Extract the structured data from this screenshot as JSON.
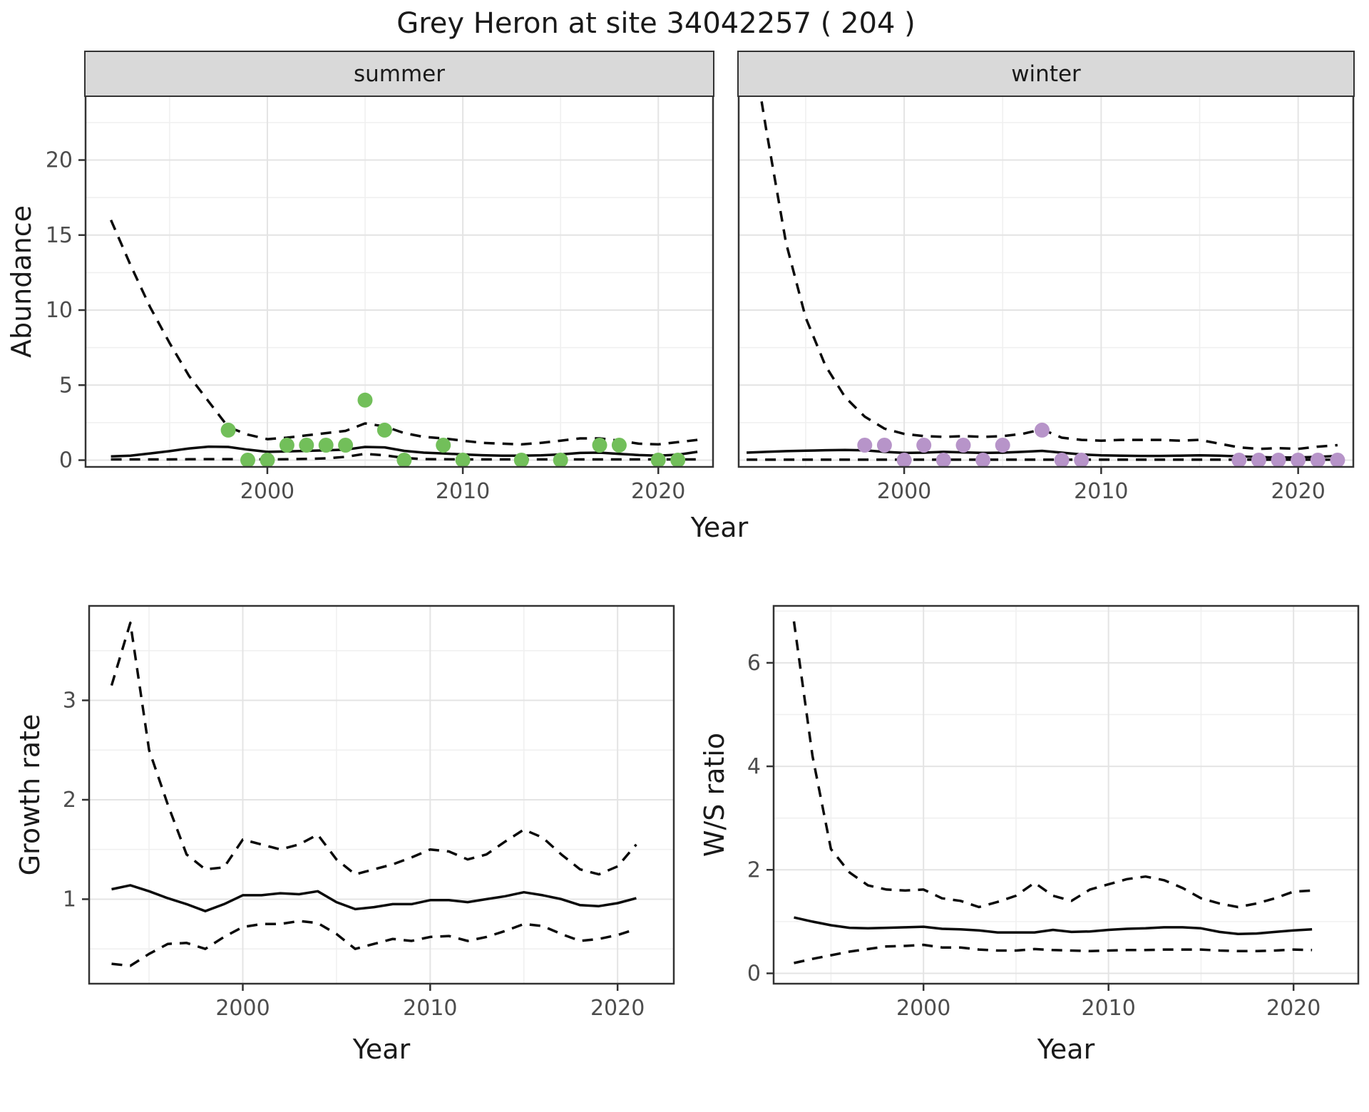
{
  "title": "Grey Heron at site 34042257 ( 204 )",
  "labels": {
    "abundance": "Abundance",
    "year": "Year",
    "growth_rate": "Growth rate",
    "ws_ratio": "W/S ratio"
  },
  "colors": {
    "summer_point": "#72BF5A",
    "winter_point": "#B794C9",
    "line": "#0a0a0a",
    "strip_fill": "#d9d9d9",
    "panel_border": "#333333",
    "grid_major": "#e4e4e4",
    "grid_minor": "#f0f0f0",
    "tick_mark": "#333333",
    "tick_label": "#4d4d4d"
  },
  "chart_data": {
    "type": "line",
    "title": "Grey Heron at site 34042257 ( 204 )",
    "xlabel": "Year",
    "legend": "none",
    "grid": "on",
    "panels": [
      {
        "id": "summer",
        "facet_label": "summer",
        "ylabel": "Abundance",
        "x_domain": [
          1990.7,
          2022.8
        ],
        "y_domain": [
          -0.45,
          24.3
        ],
        "x_ticks": [
          2000,
          2010,
          2020
        ],
        "x_minor": [
          1995,
          2005,
          2015
        ],
        "y_ticks": [
          0,
          5,
          10,
          15,
          20
        ],
        "y_minor": [
          2.5,
          7.5,
          12.5,
          17.5,
          22.5
        ],
        "years": [
          1992,
          1993,
          1994,
          1995,
          1996,
          1997,
          1998,
          1999,
          2000,
          2001,
          2002,
          2003,
          2004,
          2005,
          2006,
          2007,
          2008,
          2009,
          2010,
          2011,
          2012,
          2013,
          2014,
          2015,
          2016,
          2017,
          2018,
          2019,
          2020,
          2021,
          2022
        ],
        "series": [
          {
            "name": "upper_ci",
            "style": "dashed",
            "values": [
              16,
              13,
              10.2,
              7.8,
              5.6,
              3.9,
              2.2,
              1.7,
              1.4,
              1.5,
              1.65,
              1.8,
              1.95,
              2.45,
              2.25,
              1.8,
              1.55,
              1.45,
              1.3,
              1.15,
              1.1,
              1.05,
              1.15,
              1.3,
              1.45,
              1.45,
              1.3,
              1.1,
              1.05,
              1.2,
              1.35
            ]
          },
          {
            "name": "fit",
            "style": "solid",
            "values": [
              0.25,
              0.3,
              0.45,
              0.6,
              0.78,
              0.9,
              0.88,
              0.7,
              0.55,
              0.58,
              0.62,
              0.65,
              0.7,
              0.88,
              0.85,
              0.62,
              0.5,
              0.45,
              0.38,
              0.33,
              0.3,
              0.3,
              0.32,
              0.38,
              0.48,
              0.5,
              0.42,
              0.34,
              0.3,
              0.36,
              0.55
            ]
          },
          {
            "name": "lower_ci",
            "style": "dashed",
            "values": [
              0.05,
              0.05,
              0.05,
              0.05,
              0.06,
              0.07,
              0.07,
              0.06,
              0.05,
              0.06,
              0.08,
              0.12,
              0.22,
              0.42,
              0.32,
              0.15,
              0.07,
              0.06,
              0.05,
              0.05,
              0.05,
              0.05,
              0.05,
              0.05,
              0.05,
              0.05,
              0.05,
              0.05,
              0.05,
              0.05,
              0.05
            ]
          }
        ],
        "points": {
          "color_key": "summer_point",
          "years": [
            1998,
            1999,
            2000,
            2001,
            2002,
            2003,
            2004,
            2005,
            2006,
            2007,
            2009,
            2010,
            2013,
            2015,
            2017,
            2018,
            2020,
            2021
          ],
          "values": [
            2,
            0,
            0,
            1,
            1,
            1,
            1,
            4,
            2,
            0,
            1,
            0,
            0,
            0,
            1,
            1,
            0,
            0
          ]
        }
      },
      {
        "id": "winter",
        "facet_label": "winter",
        "ylabel": "Abundance",
        "x_domain": [
          1991.6,
          2022.8
        ],
        "y_domain": [
          -0.45,
          24.3
        ],
        "x_ticks": [
          2000,
          2010,
          2020
        ],
        "x_minor": [
          1995,
          2005,
          2015
        ],
        "y_ticks": [
          0,
          5,
          10,
          15,
          20
        ],
        "y_minor": [
          2.5,
          7.5,
          12.5,
          17.5,
          22.5
        ],
        "years": [
          1992,
          1993,
          1994,
          1995,
          1996,
          1997,
          1998,
          1999,
          2000,
          2001,
          2002,
          2003,
          2004,
          2005,
          2006,
          2007,
          2008,
          2009,
          2010,
          2011,
          2012,
          2013,
          2014,
          2015,
          2016,
          2017,
          2018,
          2019,
          2020,
          2021,
          2022
        ],
        "series": [
          {
            "name": "upper_ci",
            "style": "dashed",
            "values": [
              30,
              22,
              14.5,
              9.5,
              6.3,
              4.2,
              2.9,
              2.1,
              1.75,
              1.6,
              1.55,
              1.6,
              1.55,
              1.6,
              1.75,
              2.05,
              1.5,
              1.35,
              1.3,
              1.35,
              1.35,
              1.35,
              1.3,
              1.35,
              1.1,
              0.85,
              0.75,
              0.8,
              0.75,
              0.9,
              1.0
            ]
          },
          {
            "name": "fit",
            "style": "solid",
            "values": [
              0.5,
              0.55,
              0.6,
              0.63,
              0.66,
              0.68,
              0.65,
              0.55,
              0.48,
              0.5,
              0.55,
              0.52,
              0.48,
              0.5,
              0.55,
              0.62,
              0.5,
              0.38,
              0.32,
              0.3,
              0.28,
              0.28,
              0.3,
              0.32,
              0.3,
              0.25,
              0.2,
              0.18,
              0.18,
              0.22,
              0.28
            ]
          },
          {
            "name": "lower_ci",
            "style": "dashed",
            "values": [
              0.03,
              0.03,
              0.03,
              0.03,
              0.03,
              0.03,
              0.03,
              0.03,
              0.03,
              0.03,
              0.03,
              0.03,
              0.03,
              0.03,
              0.03,
              0.03,
              0.03,
              0.03,
              0.03,
              0.03,
              0.03,
              0.03,
              0.03,
              0.03,
              0.03,
              0.03,
              0.03,
              0.03,
              0.03,
              0.03,
              0.03
            ]
          }
        ],
        "points": {
          "color_key": "winter_point",
          "years": [
            1998,
            1999,
            2000,
            2001,
            2002,
            2003,
            2004,
            2005,
            2007,
            2008,
            2009,
            2017,
            2018,
            2019,
            2020,
            2021,
            2022
          ],
          "values": [
            1,
            1,
            0,
            1,
            0,
            1,
            0,
            1,
            2,
            0,
            0,
            0,
            0,
            0,
            0,
            0,
            0
          ]
        }
      },
      {
        "id": "growth",
        "facet_label": "",
        "ylabel": "Growth rate",
        "x_domain": [
          1991.8,
          2023.0
        ],
        "y_domain": [
          0.15,
          3.95
        ],
        "x_ticks": [
          2000,
          2010,
          2020
        ],
        "x_minor": [
          1995,
          2005,
          2015
        ],
        "y_ticks": [
          1,
          2,
          3
        ],
        "y_minor": [
          0.5,
          1.5,
          2.5,
          3.5
        ],
        "years": [
          1993,
          1994,
          1995,
          1996,
          1997,
          1998,
          1999,
          2000,
          2001,
          2002,
          2003,
          2004,
          2005,
          2006,
          2007,
          2008,
          2009,
          2010,
          2011,
          2012,
          2013,
          2014,
          2015,
          2016,
          2017,
          2018,
          2019,
          2020,
          2021
        ],
        "series": [
          {
            "name": "upper_ci",
            "style": "dashed",
            "values": [
              3.15,
              3.78,
              2.5,
              1.95,
              1.45,
              1.3,
              1.32,
              1.6,
              1.55,
              1.5,
              1.55,
              1.65,
              1.4,
              1.25,
              1.3,
              1.35,
              1.42,
              1.5,
              1.48,
              1.4,
              1.45,
              1.58,
              1.7,
              1.62,
              1.45,
              1.3,
              1.25,
              1.33,
              1.55
            ]
          },
          {
            "name": "fit",
            "style": "solid",
            "values": [
              1.1,
              1.14,
              1.08,
              1.01,
              0.95,
              0.88,
              0.95,
              1.04,
              1.04,
              1.06,
              1.05,
              1.08,
              0.97,
              0.9,
              0.92,
              0.95,
              0.95,
              0.99,
              0.99,
              0.97,
              1.0,
              1.03,
              1.07,
              1.04,
              1.0,
              0.94,
              0.93,
              0.96,
              1.01
            ]
          },
          {
            "name": "lower_ci",
            "style": "dashed",
            "values": [
              0.35,
              0.33,
              0.45,
              0.55,
              0.56,
              0.5,
              0.62,
              0.72,
              0.75,
              0.75,
              0.78,
              0.76,
              0.65,
              0.5,
              0.55,
              0.6,
              0.58,
              0.62,
              0.63,
              0.58,
              0.62,
              0.68,
              0.75,
              0.73,
              0.65,
              0.58,
              0.6,
              0.64,
              0.7
            ]
          }
        ],
        "points": {
          "color_key": "",
          "years": [],
          "values": []
        }
      },
      {
        "id": "ws",
        "facet_label": "",
        "ylabel": "W/S ratio",
        "x_domain": [
          1991.9,
          2023.5
        ],
        "y_domain": [
          -0.2,
          7.1
        ],
        "x_ticks": [
          2000,
          2010,
          2020
        ],
        "x_minor": [
          1995,
          2005,
          2015
        ],
        "y_ticks": [
          0,
          2,
          4,
          6
        ],
        "y_minor": [
          1,
          3,
          5,
          7
        ],
        "years": [
          1993,
          1994,
          1995,
          1996,
          1997,
          1998,
          1999,
          2000,
          2001,
          2002,
          2003,
          2004,
          2005,
          2006,
          2007,
          2008,
          2009,
          2010,
          2011,
          2012,
          2013,
          2014,
          2015,
          2016,
          2017,
          2018,
          2019,
          2020,
          2021
        ],
        "series": [
          {
            "name": "upper_ci",
            "style": "dashed",
            "values": [
              6.8,
              4.2,
              2.4,
              1.95,
              1.7,
              1.62,
              1.6,
              1.62,
              1.45,
              1.4,
              1.28,
              1.38,
              1.5,
              1.75,
              1.5,
              1.4,
              1.62,
              1.72,
              1.82,
              1.87,
              1.8,
              1.65,
              1.45,
              1.35,
              1.28,
              1.35,
              1.45,
              1.58,
              1.6
            ]
          },
          {
            "name": "fit",
            "style": "solid",
            "values": [
              1.08,
              1.0,
              0.93,
              0.88,
              0.87,
              0.88,
              0.89,
              0.9,
              0.86,
              0.85,
              0.83,
              0.79,
              0.79,
              0.79,
              0.84,
              0.8,
              0.81,
              0.84,
              0.86,
              0.87,
              0.89,
              0.89,
              0.87,
              0.8,
              0.76,
              0.77,
              0.8,
              0.83,
              0.85
            ]
          },
          {
            "name": "lower_ci",
            "style": "dashed",
            "values": [
              0.2,
              0.28,
              0.35,
              0.42,
              0.47,
              0.52,
              0.53,
              0.55,
              0.5,
              0.5,
              0.46,
              0.44,
              0.44,
              0.47,
              0.45,
              0.44,
              0.43,
              0.44,
              0.45,
              0.45,
              0.46,
              0.46,
              0.46,
              0.44,
              0.43,
              0.43,
              0.44,
              0.46,
              0.45
            ]
          }
        ],
        "points": {
          "color_key": "",
          "years": [],
          "values": []
        }
      }
    ]
  }
}
